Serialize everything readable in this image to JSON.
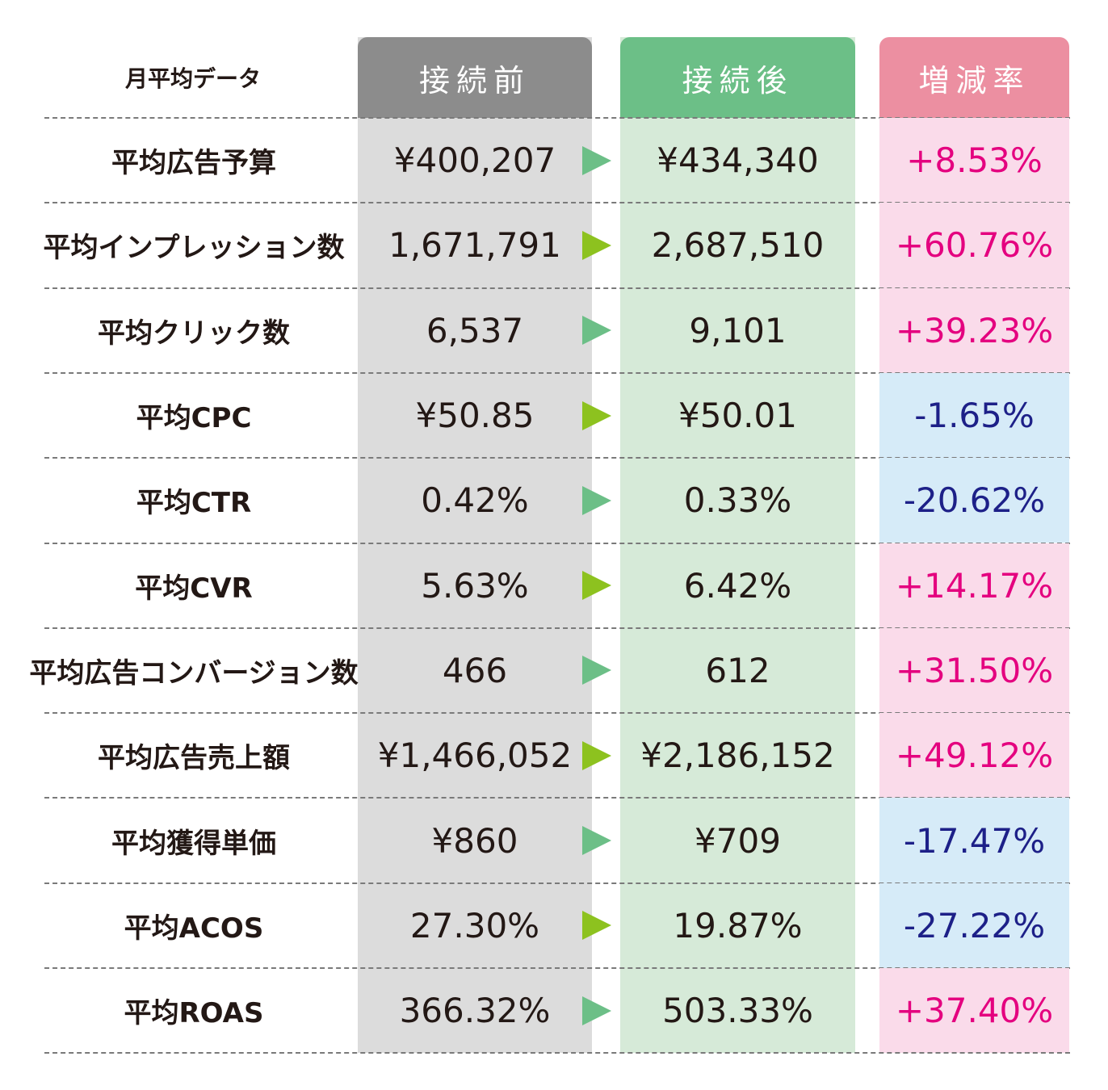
{
  "colors": {
    "header_before": "#8c8c8c",
    "header_after": "#6cbf87",
    "header_rate": "#ec8fa1",
    "column_before": "#dcdcdc",
    "column_after": "#d6ead8",
    "rate_positive_bg": "#fadbea",
    "rate_negative_bg": "#d6ebf8",
    "rate_positive_text": "#e4007f",
    "rate_negative_text": "#1d2088",
    "arrow_green": "#6cbf87",
    "arrow_lime": "#8dc21f"
  },
  "chart_data": {
    "type": "table",
    "header": {
      "label": "月平均データ",
      "before": "接続前",
      "after": "接続後",
      "rate": "増減率"
    },
    "rows": [
      {
        "label": "平均広告予算",
        "before": "¥400,207",
        "after": "¥434,340",
        "rate": "+8.53%",
        "sign": "pos",
        "arrow": "green"
      },
      {
        "label": "平均インプレッション数",
        "before": "1,671,791",
        "after": "2,687,510",
        "rate": "+60.76%",
        "sign": "pos",
        "arrow": "lime"
      },
      {
        "label": "平均クリック数",
        "before": "6,537",
        "after": "9,101",
        "rate": "+39.23%",
        "sign": "pos",
        "arrow": "green"
      },
      {
        "label": "平均CPC",
        "before": "¥50.85",
        "after": "¥50.01",
        "rate": "-1.65%",
        "sign": "neg",
        "arrow": "lime"
      },
      {
        "label": "平均CTR",
        "before": "0.42%",
        "after": "0.33%",
        "rate": "-20.62%",
        "sign": "neg",
        "arrow": "green"
      },
      {
        "label": "平均CVR",
        "before": "5.63%",
        "after": "6.42%",
        "rate": "+14.17%",
        "sign": "pos",
        "arrow": "lime"
      },
      {
        "label": "平均広告コンバージョン数",
        "before": "466",
        "after": "612",
        "rate": "+31.50%",
        "sign": "pos",
        "arrow": "green"
      },
      {
        "label": "平均広告売上額",
        "before": "¥1,466,052",
        "after": "¥2,186,152",
        "rate": "+49.12%",
        "sign": "pos",
        "arrow": "lime"
      },
      {
        "label": "平均獲得単価",
        "before": "¥860",
        "after": "¥709",
        "rate": "-17.47%",
        "sign": "neg",
        "arrow": "green"
      },
      {
        "label": "平均ACOS",
        "before": "27.30%",
        "after": "19.87%",
        "rate": "-27.22%",
        "sign": "neg",
        "arrow": "lime"
      },
      {
        "label": "平均ROAS",
        "before": "366.32%",
        "after": "503.33%",
        "rate": "+37.40%",
        "sign": "pos",
        "arrow": "green"
      }
    ]
  }
}
